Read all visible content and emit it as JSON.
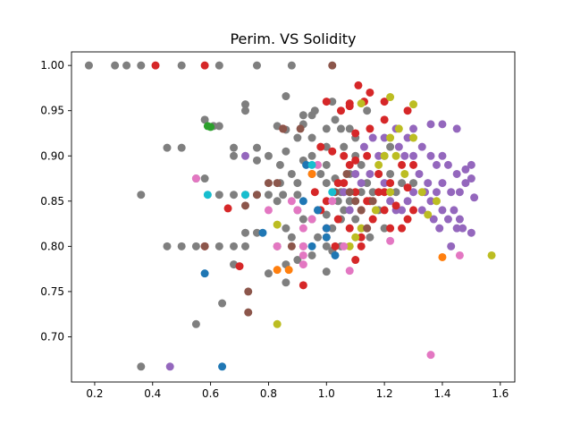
{
  "chart_data": {
    "type": "scatter",
    "title": "Perim. VS Solidity",
    "xlabel": "",
    "ylabel": "",
    "xlim": [
      0.12,
      1.65
    ],
    "ylim": [
      0.65,
      1.015
    ],
    "xticks": [
      0.2,
      0.4,
      0.6,
      0.8,
      1.0,
      1.2,
      1.4,
      1.6
    ],
    "yticks": [
      0.7,
      0.75,
      0.8,
      0.85,
      0.9,
      0.95,
      1.0
    ],
    "xtick_labels": [
      "0.2",
      "0.4",
      "0.6",
      "0.8",
      "1.0",
      "1.2",
      "1.4",
      "1.6"
    ],
    "ytick_labels": [
      "0.70",
      "0.75",
      "0.80",
      "0.85",
      "0.90",
      "0.95",
      "1.00"
    ],
    "grid": false,
    "legend": "none",
    "palette": {
      "blue": "#1f77b4",
      "orange": "#ff7f0e",
      "green": "#2ca02c",
      "red": "#d62728",
      "purple": "#9467bd",
      "brown": "#8c564b",
      "pink": "#e377c2",
      "gray": "#7f7f7f",
      "olive": "#bcbd22",
      "cyan": "#17becf"
    },
    "series": [
      {
        "color": "#7f7f7f",
        "points": [
          [
            0.18,
            1.0
          ],
          [
            0.27,
            1.0
          ],
          [
            0.31,
            1.0
          ],
          [
            0.36,
            1.0
          ],
          [
            0.5,
            1.0
          ],
          [
            0.63,
            1.0
          ],
          [
            0.76,
            1.0
          ],
          [
            0.88,
            1.0
          ],
          [
            0.45,
            0.909
          ],
          [
            0.5,
            0.909
          ],
          [
            0.58,
            0.94
          ],
          [
            0.61,
            0.933
          ],
          [
            0.63,
            0.933
          ],
          [
            0.72,
            0.957
          ],
          [
            0.72,
            0.95
          ],
          [
            0.36,
            0.857
          ],
          [
            0.45,
            0.8
          ],
          [
            0.5,
            0.8
          ],
          [
            0.55,
            0.8
          ],
          [
            0.63,
            0.8
          ],
          [
            0.68,
            0.8
          ],
          [
            0.72,
            0.8
          ],
          [
            0.55,
            0.875
          ],
          [
            0.58,
            0.875
          ],
          [
            0.68,
            0.909
          ],
          [
            0.68,
            0.9
          ],
          [
            0.76,
            0.909
          ],
          [
            0.76,
            0.895
          ],
          [
            0.8,
            0.9
          ],
          [
            0.63,
            0.857
          ],
          [
            0.68,
            0.857
          ],
          [
            0.72,
            0.857
          ],
          [
            0.76,
            0.857
          ],
          [
            0.8,
            0.857
          ],
          [
            0.85,
            0.857
          ],
          [
            0.9,
            0.857
          ],
          [
            0.83,
            0.933
          ],
          [
            0.86,
            0.966
          ],
          [
            0.86,
            0.929
          ],
          [
            0.9,
            0.92
          ],
          [
            0.92,
            0.945
          ],
          [
            0.92,
            0.935
          ],
          [
            0.95,
            0.945
          ],
          [
            0.95,
            0.92
          ],
          [
            1.0,
            0.93
          ],
          [
            1.0,
            0.91
          ],
          [
            1.03,
            0.94
          ],
          [
            1.05,
            0.93
          ],
          [
            1.08,
            0.93
          ],
          [
            1.0,
            0.89
          ],
          [
            0.92,
            0.895
          ],
          [
            0.95,
            0.9
          ],
          [
            0.98,
            0.88
          ],
          [
            1.0,
            0.87
          ],
          [
            1.03,
            0.875
          ],
          [
            1.05,
            0.86
          ],
          [
            1.08,
            0.88
          ],
          [
            0.9,
            0.84
          ],
          [
            0.92,
            0.83
          ],
          [
            0.95,
            0.83
          ],
          [
            0.97,
            0.84
          ],
          [
            1.0,
            0.835
          ],
          [
            1.02,
            0.82
          ],
          [
            1.05,
            0.83
          ],
          [
            0.86,
            0.82
          ],
          [
            0.88,
            0.81
          ],
          [
            0.92,
            0.8
          ],
          [
            0.97,
            0.81
          ],
          [
            1.0,
            0.8
          ],
          [
            1.02,
            0.795
          ],
          [
            1.05,
            0.8
          ],
          [
            0.86,
            0.78
          ],
          [
            0.86,
            0.76
          ],
          [
            0.9,
            0.785
          ],
          [
            0.95,
            0.79
          ],
          [
            1.0,
            0.772
          ],
          [
            0.8,
            0.77
          ],
          [
            0.76,
            0.815
          ],
          [
            0.72,
            0.815
          ],
          [
            0.68,
            0.78
          ],
          [
            0.64,
            0.737
          ],
          [
            0.55,
            0.714
          ],
          [
            0.36,
            0.667
          ],
          [
            0.83,
            0.85
          ],
          [
            0.88,
            0.88
          ],
          [
            0.84,
            0.87
          ],
          [
            0.9,
            0.87
          ],
          [
            1.1,
            0.9
          ],
          [
            1.12,
            0.89
          ],
          [
            1.14,
            0.87
          ],
          [
            1.16,
            0.86
          ],
          [
            1.2,
            0.9
          ],
          [
            1.22,
            0.88
          ],
          [
            1.24,
            0.86
          ],
          [
            1.26,
            0.87
          ],
          [
            1.18,
            0.84
          ],
          [
            1.2,
            0.82
          ],
          [
            1.15,
            0.81
          ],
          [
            1.1,
            0.83
          ],
          [
            1.08,
            0.85
          ],
          [
            1.04,
            0.85
          ],
          [
            1.06,
            0.84
          ],
          [
            1.12,
            0.86
          ],
          [
            1.18,
            0.88
          ],
          [
            1.22,
            0.91
          ],
          [
            1.3,
            0.87
          ],
          [
            1.06,
            0.91
          ],
          [
            1.1,
            0.92
          ],
          [
            1.14,
            0.95
          ],
          [
            1.02,
            0.96
          ],
          [
            0.96,
            0.95
          ],
          [
            0.86,
            0.905
          ],
          [
            0.84,
            0.89
          ]
        ]
      },
      {
        "color": "#9467bd",
        "points": [
          [
            1.25,
            0.91
          ],
          [
            1.28,
            0.92
          ],
          [
            1.3,
            0.93
          ],
          [
            1.33,
            0.91
          ],
          [
            1.36,
            0.9
          ],
          [
            1.38,
            0.89
          ],
          [
            1.4,
            0.9
          ],
          [
            1.42,
            0.89
          ],
          [
            1.45,
            0.88
          ],
          [
            1.48,
            0.885
          ],
          [
            1.5,
            0.89
          ],
          [
            1.45,
            0.93
          ],
          [
            1.4,
            0.935
          ],
          [
            1.36,
            0.935
          ],
          [
            1.3,
            0.9
          ],
          [
            1.32,
            0.88
          ],
          [
            1.35,
            0.87
          ],
          [
            1.38,
            0.86
          ],
          [
            1.4,
            0.87
          ],
          [
            1.43,
            0.86
          ],
          [
            1.46,
            0.86
          ],
          [
            1.48,
            0.87
          ],
          [
            1.5,
            0.875
          ],
          [
            1.44,
            0.84
          ],
          [
            1.42,
            0.83
          ],
          [
            1.46,
            0.83
          ],
          [
            1.47,
            0.82
          ],
          [
            1.51,
            0.854
          ],
          [
            1.5,
            0.815
          ],
          [
            1.4,
            0.84
          ],
          [
            1.36,
            0.85
          ],
          [
            1.33,
            0.84
          ],
          [
            1.3,
            0.86
          ],
          [
            1.28,
            0.85
          ],
          [
            1.26,
            0.84
          ],
          [
            1.24,
            0.84
          ],
          [
            1.22,
            0.85
          ],
          [
            1.2,
            0.87
          ],
          [
            1.18,
            0.9
          ],
          [
            1.16,
            0.92
          ],
          [
            1.2,
            0.92
          ],
          [
            1.24,
            0.93
          ],
          [
            1.27,
            0.9
          ],
          [
            1.34,
            0.86
          ],
          [
            1.37,
            0.83
          ],
          [
            1.39,
            0.82
          ],
          [
            1.43,
            0.8
          ],
          [
            1.45,
            0.82
          ],
          [
            1.12,
            0.87
          ],
          [
            1.1,
            0.88
          ],
          [
            1.08,
            0.84
          ],
          [
            1.06,
            0.86
          ],
          [
            0.72,
            0.9
          ],
          [
            0.46,
            0.667
          ],
          [
            1.13,
            0.91
          ],
          [
            1.15,
            0.88
          ]
        ]
      },
      {
        "color": "#d62728",
        "points": [
          [
            0.41,
            1.0
          ],
          [
            0.58,
            1.0
          ],
          [
            1.11,
            0.978
          ],
          [
            1.08,
            0.958
          ],
          [
            1.08,
            0.955
          ],
          [
            1.15,
            0.97
          ],
          [
            1.2,
            0.96
          ],
          [
            1.28,
            0.95
          ],
          [
            1.2,
            0.94
          ],
          [
            1.15,
            0.93
          ],
          [
            1.1,
            0.925
          ],
          [
            1.05,
            0.95
          ],
          [
            1.0,
            0.96
          ],
          [
            0.98,
            0.91
          ],
          [
            1.02,
            0.905
          ],
          [
            1.06,
            0.9
          ],
          [
            1.1,
            0.895
          ],
          [
            1.14,
            0.9
          ],
          [
            1.18,
            0.88
          ],
          [
            1.22,
            0.87
          ],
          [
            1.26,
            0.89
          ],
          [
            1.3,
            0.89
          ],
          [
            1.28,
            0.865
          ],
          [
            1.24,
            0.845
          ],
          [
            1.2,
            0.84
          ],
          [
            1.16,
            0.83
          ],
          [
            1.12,
            0.81
          ],
          [
            1.08,
            0.82
          ],
          [
            1.04,
            0.83
          ],
          [
            1.0,
            0.85
          ],
          [
            0.96,
            0.86
          ],
          [
            0.98,
            0.84
          ],
          [
            1.1,
            0.86
          ],
          [
            1.14,
            0.85
          ],
          [
            1.06,
            0.87
          ],
          [
            1.18,
            0.86
          ],
          [
            1.3,
            0.84
          ],
          [
            1.28,
            0.83
          ],
          [
            1.22,
            0.82
          ],
          [
            1.15,
            0.85
          ],
          [
            1.1,
            0.785
          ],
          [
            1.12,
            0.8
          ],
          [
            1.03,
            0.8
          ],
          [
            0.92,
            0.757
          ],
          [
            0.66,
            0.842
          ],
          [
            0.7,
            0.778
          ],
          [
            0.58,
            0.8
          ],
          [
            0.85,
            0.93
          ],
          [
            1.2,
            0.86
          ],
          [
            1.26,
            0.82
          ],
          [
            1.08,
            0.89
          ],
          [
            1.04,
            0.87
          ],
          [
            1.12,
            0.84
          ],
          [
            1.0,
            0.82
          ],
          [
            1.13,
            0.96
          ]
        ]
      },
      {
        "color": "#bcbd22",
        "points": [
          [
            1.22,
            0.965
          ],
          [
            1.3,
            0.957
          ],
          [
            1.25,
            0.93
          ],
          [
            1.22,
            0.92
          ],
          [
            1.2,
            0.9
          ],
          [
            1.18,
            0.89
          ],
          [
            1.24,
            0.9
          ],
          [
            1.3,
            0.92
          ],
          [
            1.27,
            0.88
          ],
          [
            1.22,
            0.86
          ],
          [
            1.17,
            0.84
          ],
          [
            1.12,
            0.82
          ],
          [
            1.1,
            0.81
          ],
          [
            1.08,
            0.8
          ],
          [
            1.33,
            0.86
          ],
          [
            1.38,
            0.85
          ],
          [
            1.35,
            0.835
          ],
          [
            1.57,
            0.79
          ],
          [
            1.12,
            0.958
          ],
          [
            0.83,
            0.714
          ],
          [
            0.83,
            0.824
          ]
        ]
      },
      {
        "color": "#8c564b",
        "points": [
          [
            1.02,
            1.0
          ],
          [
            0.91,
            0.93
          ],
          [
            0.85,
            0.93
          ],
          [
            0.8,
            0.87
          ],
          [
            0.76,
            0.857
          ],
          [
            0.72,
            0.845
          ],
          [
            0.83,
            0.87
          ],
          [
            0.95,
            0.88
          ],
          [
            1.03,
            0.86
          ],
          [
            1.07,
            0.88
          ],
          [
            1.1,
            0.85
          ],
          [
            1.12,
            0.84
          ],
          [
            1.14,
            0.82
          ],
          [
            1.0,
            0.81
          ],
          [
            0.73,
            0.75
          ],
          [
            0.73,
            0.727
          ],
          [
            0.58,
            0.8
          ],
          [
            0.83,
            0.8
          ],
          [
            0.88,
            0.8
          ],
          [
            1.08,
            0.86
          ],
          [
            1.16,
            0.85
          ]
        ]
      },
      {
        "color": "#e377c2",
        "points": [
          [
            0.92,
            0.82
          ],
          [
            0.92,
            0.8
          ],
          [
            0.92,
            0.78
          ],
          [
            0.92,
            0.79
          ],
          [
            0.88,
            0.85
          ],
          [
            0.9,
            0.84
          ],
          [
            0.83,
            0.8
          ],
          [
            0.8,
            0.84
          ],
          [
            0.95,
            0.83
          ],
          [
            1.0,
            0.82
          ],
          [
            1.08,
            0.773
          ],
          [
            1.22,
            0.806
          ],
          [
            1.36,
            0.68
          ],
          [
            1.46,
            0.79
          ],
          [
            0.55,
            0.875
          ],
          [
            0.97,
            0.89
          ],
          [
            1.02,
            0.85
          ],
          [
            1.06,
            0.8
          ]
        ]
      },
      {
        "color": "#1f77b4",
        "points": [
          [
            0.58,
            0.77
          ],
          [
            0.64,
            0.667
          ],
          [
            0.78,
            0.815
          ],
          [
            0.93,
            0.89
          ],
          [
            0.97,
            0.84
          ],
          [
            1.0,
            0.82
          ],
          [
            1.0,
            0.81
          ],
          [
            1.03,
            0.79
          ],
          [
            0.95,
            0.8
          ],
          [
            0.92,
            0.85
          ]
        ]
      },
      {
        "color": "#ff7f0e",
        "points": [
          [
            0.83,
            0.774
          ],
          [
            0.87,
            0.774
          ],
          [
            1.4,
            0.788
          ],
          [
            0.95,
            0.88
          ]
        ]
      },
      {
        "color": "#2ca02c",
        "points": [
          [
            0.59,
            0.933
          ],
          [
            0.6,
            0.932
          ]
        ]
      },
      {
        "color": "#17becf",
        "points": [
          [
            0.59,
            0.857
          ],
          [
            0.72,
            0.857
          ],
          [
            0.95,
            0.89
          ],
          [
            1.02,
            0.86
          ]
        ]
      }
    ]
  }
}
